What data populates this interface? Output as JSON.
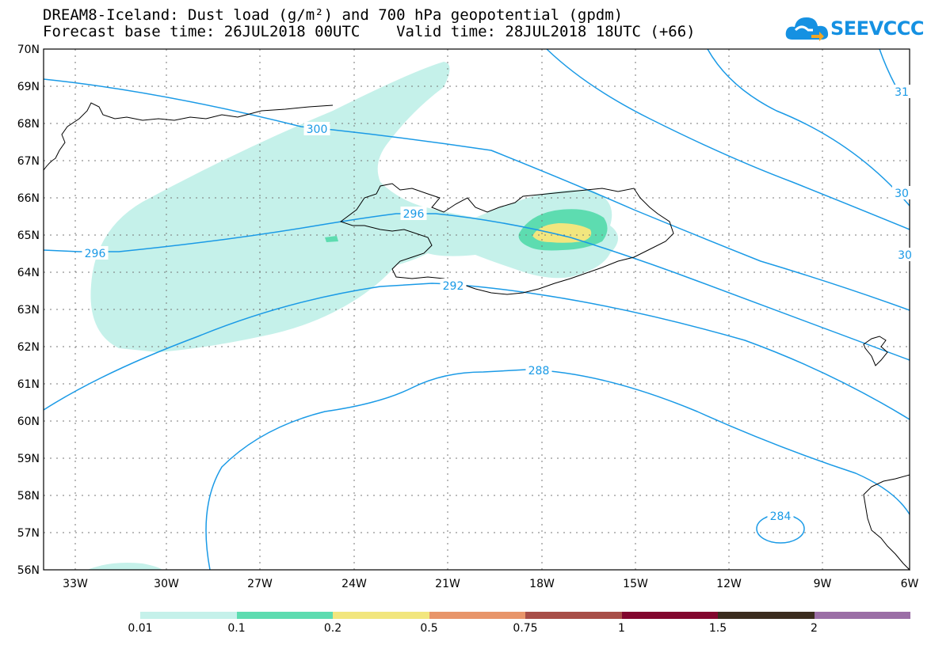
{
  "title": {
    "line1": "DREAM8-Iceland: Dust load (g/m²) and 700 hPa geopotential (gpdm)",
    "line2": "Forecast base time: 26JUL2018 00UTC    Valid time: 28JUL2018 18UTC (+66)"
  },
  "logo": {
    "text": "SEEVCCC",
    "color": "#1591e2"
  },
  "map": {
    "lat_labels": [
      "70N",
      "69N",
      "68N",
      "67N",
      "66N",
      "65N",
      "64N",
      "63N",
      "62N",
      "61N",
      "60N",
      "59N",
      "58N",
      "57N",
      "56N"
    ],
    "lon_labels": [
      "33W",
      "30W",
      "27W",
      "24W",
      "21W",
      "18W",
      "15W",
      "12W",
      "9W",
      "6W"
    ],
    "contour_labels": [
      "300",
      "296",
      "296",
      "292",
      "288",
      "284",
      "31",
      "30",
      "30"
    ],
    "contour_color": "#1a9ae6",
    "dust_colors": {
      "low": "#c5f1ea",
      "mid": "#5ddcb0",
      "high": "#f2e67e"
    }
  },
  "colorbar": {
    "labels": [
      "0.01",
      "0.1",
      "0.2",
      "0.5",
      "0.75",
      "1",
      "1.5",
      "2"
    ],
    "colors": [
      "#c5f1ea",
      "#5ddcb0",
      "#f2e67e",
      "#e8956a",
      "#a84e48",
      "#82062e",
      "#3b2c1e",
      "#9b6ea6"
    ]
  }
}
